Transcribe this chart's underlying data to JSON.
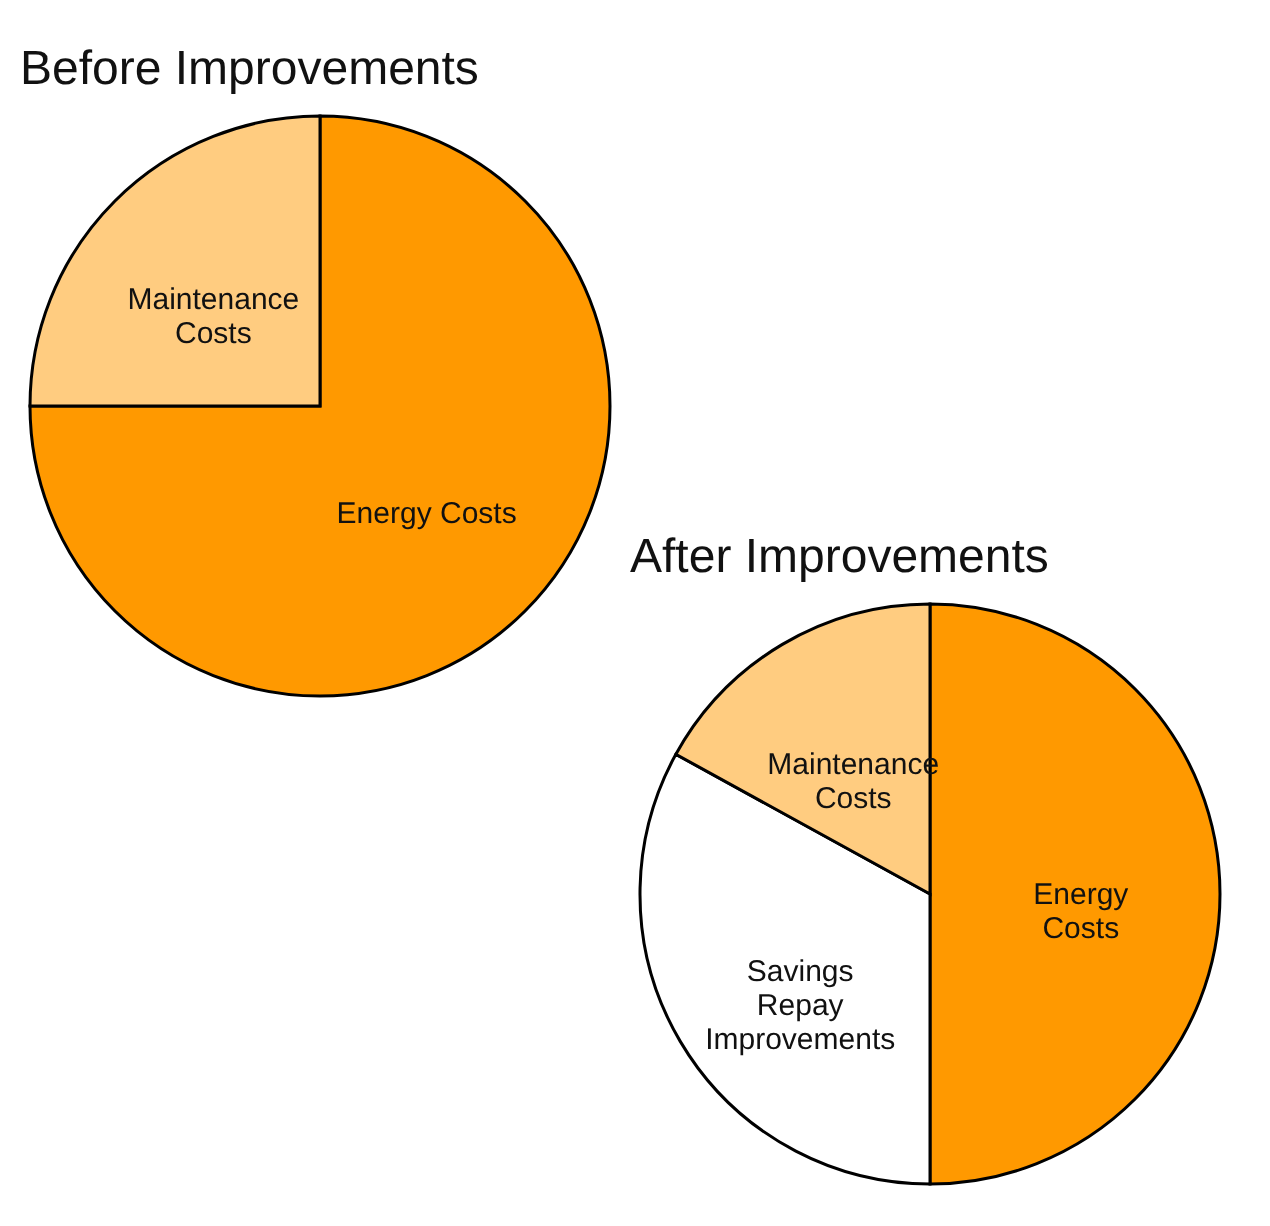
{
  "chart_data": [
    {
      "type": "pie",
      "title": "Before Improvements",
      "categories": [
        "Energy Costs",
        "Maintenance\nCosts"
      ],
      "values": [
        75,
        25
      ],
      "colors": [
        "#ff9900",
        "#ffcc80"
      ],
      "legend": false
    },
    {
      "type": "pie",
      "title": "After Improvements",
      "categories": [
        "Energy\nCosts",
        "Savings\nRepay\nImprovements",
        "Maintenance\nCosts"
      ],
      "values": [
        50,
        33,
        17
      ],
      "colors": [
        "#ff9900",
        "#ffffff",
        "#ffcc80"
      ],
      "legend": false
    }
  ]
}
